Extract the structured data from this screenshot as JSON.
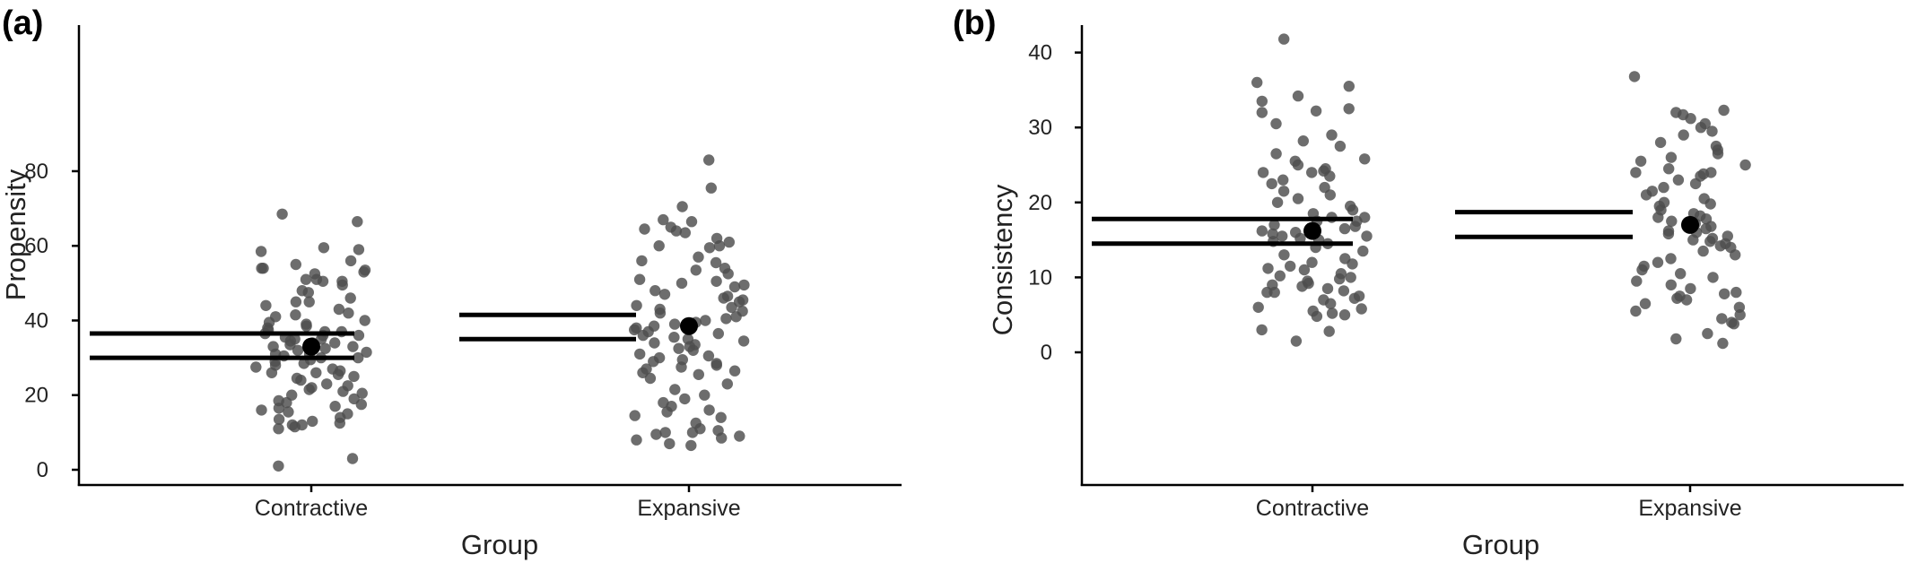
{
  "chart_data": [
    {
      "panel": "(a)",
      "type": "scatter",
      "xlabel": "Group",
      "ylabel": "Propensity",
      "categories": [
        "Contractive",
        "Expansive"
      ],
      "yticks": [
        0,
        20,
        40,
        60,
        80
      ],
      "ylim": [
        -3,
        86
      ],
      "grid": false,
      "legend": "none",
      "groups": [
        {
          "name": "Contractive",
          "mean": 33,
          "ci_lower": 30,
          "ci_upper": 36.5,
          "points": [
            68.5,
            66.5,
            59.5,
            59,
            58.5,
            56,
            55,
            54,
            54,
            53.5,
            53,
            52.5,
            51,
            51,
            50.5,
            50.5,
            49.5,
            48,
            47.5,
            46,
            45,
            45,
            44,
            43,
            42,
            41.5,
            41,
            40,
            39.5,
            39,
            38.5,
            38,
            37.5,
            37,
            37,
            36.5,
            36,
            36,
            35.5,
            35,
            35,
            34.5,
            34,
            34,
            33.5,
            33,
            33,
            32.5,
            32,
            31.5,
            31,
            31,
            30.5,
            30,
            30,
            29.5,
            29,
            28.5,
            28,
            27.5,
            27,
            26.5,
            26,
            26,
            25.5,
            25,
            24.5,
            24,
            23,
            22.5,
            22,
            21.5,
            21,
            20.5,
            20,
            19,
            18.5,
            18,
            17.5,
            17,
            16.5,
            16,
            15.5,
            15,
            14,
            13.5,
            13,
            12.5,
            12,
            12,
            11.5,
            11,
            3,
            1
          ]
        },
        {
          "name": "Expansive",
          "mean": 38.5,
          "ci_lower": 35,
          "ci_upper": 41.5,
          "points": [
            83,
            75.5,
            70.5,
            67,
            66.5,
            65,
            64.5,
            64,
            63.5,
            62,
            61,
            60,
            60,
            59.5,
            57,
            56,
            55.5,
            54,
            53.5,
            52.5,
            51,
            50.5,
            50,
            49.5,
            49,
            48,
            47,
            46.5,
            46,
            45.5,
            45,
            44,
            43.5,
            43,
            42.5,
            42,
            41,
            40.5,
            40,
            39.5,
            39,
            38.5,
            38,
            37.5,
            37,
            36.5,
            36,
            35.5,
            35,
            34.5,
            34,
            33.5,
            33,
            32.5,
            32,
            31,
            30.5,
            30,
            29.5,
            29,
            28.5,
            28,
            27.5,
            27,
            26.5,
            26,
            25.5,
            24.5,
            23,
            21.5,
            20,
            19,
            18,
            17,
            16,
            15.5,
            14.5,
            14,
            12.5,
            11,
            10.5,
            10,
            10,
            9.5,
            9,
            8.5,
            8,
            7,
            6.5
          ]
        }
      ]
    },
    {
      "panel": "(b)",
      "type": "scatter",
      "xlabel": "Group",
      "ylabel": "Consistency",
      "categories": [
        "Contractive",
        "Expansive"
      ],
      "yticks": [
        0,
        10,
        20,
        30,
        40
      ],
      "ylim": [
        -1,
        43
      ],
      "grid": false,
      "legend": "none",
      "groups": [
        {
          "name": "Contractive",
          "mean": 16.2,
          "ci_lower": 14.5,
          "ci_upper": 17.8,
          "points": [
            41.8,
            36,
            35.5,
            34.2,
            33.5,
            32.5,
            32.2,
            32,
            30.5,
            29,
            28.2,
            27.5,
            26.5,
            25.8,
            25.5,
            25,
            24.5,
            24.2,
            24,
            24,
            23.5,
            23,
            22.5,
            22,
            21.5,
            21,
            20.5,
            20,
            19.5,
            19,
            18.5,
            18,
            18,
            17.5,
            17.5,
            17,
            16.8,
            16.5,
            16.2,
            16,
            15.8,
            15.5,
            15.5,
            15.2,
            15,
            14.8,
            14.5,
            14,
            13.5,
            13,
            12.5,
            12,
            11.8,
            11.5,
            11.2,
            11,
            10.5,
            10.2,
            10,
            9.8,
            9.5,
            9.2,
            9,
            8.8,
            8.5,
            8.2,
            8,
            8,
            7.5,
            7.2,
            7,
            6.5,
            6,
            5.8,
            5.5,
            5.2,
            5,
            4.8,
            3,
            2.8,
            1.5
          ]
        },
        {
          "name": "Expansive",
          "mean": 17,
          "ci_lower": 15.4,
          "ci_upper": 18.7,
          "points": [
            36.8,
            32.3,
            32,
            31.7,
            31.2,
            30.5,
            30,
            29.5,
            29,
            28,
            27.5,
            27,
            26.5,
            26,
            25.5,
            25,
            24.5,
            24,
            24,
            23.8,
            23.5,
            23,
            22.5,
            22,
            21.5,
            21,
            20.5,
            20,
            19.8,
            19.5,
            19,
            18.5,
            18.2,
            18,
            17.8,
            17.5,
            17.2,
            17,
            16.8,
            16.5,
            16.2,
            16,
            15.8,
            15.5,
            15.2,
            15,
            14.8,
            14.5,
            14.2,
            14,
            13.5,
            13,
            12.5,
            12,
            11.5,
            11,
            10.5,
            10,
            9.5,
            9,
            8.5,
            8,
            7.8,
            7.5,
            7.2,
            7,
            6.5,
            6,
            5.5,
            5,
            4.5,
            4,
            3.8,
            2.5,
            1.8,
            1.2
          ]
        }
      ]
    }
  ]
}
